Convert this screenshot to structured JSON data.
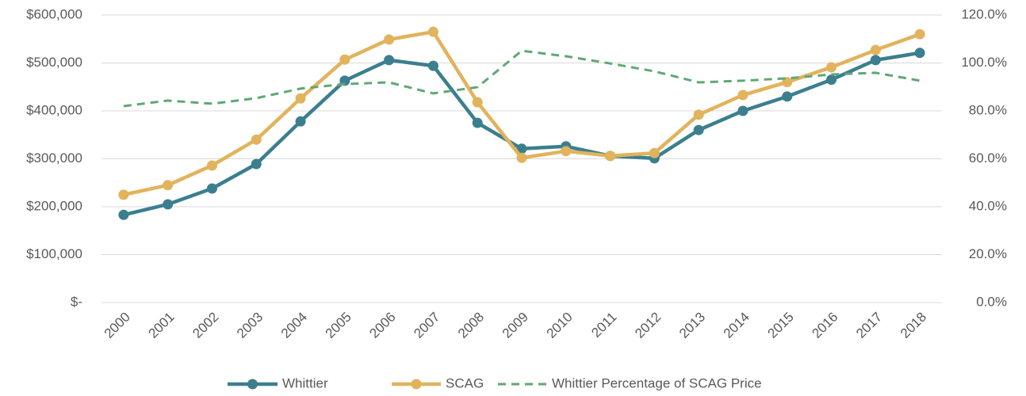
{
  "chart_data": {
    "type": "line",
    "categories": [
      "2000",
      "2001",
      "2002",
      "2003",
      "2004",
      "2005",
      "2006",
      "2007",
      "2008",
      "2009",
      "2010",
      "2011",
      "2012",
      "2013",
      "2014",
      "2015",
      "2016",
      "2017",
      "2018"
    ],
    "series": [
      {
        "name": "Whittier",
        "color": "#3b7f8e",
        "values": [
          183000,
          205000,
          238000,
          289000,
          378000,
          463000,
          506000,
          494000,
          375000,
          321000,
          326000,
          306000,
          301000,
          360000,
          400000,
          430000,
          465000,
          506000,
          521000
        ]
      },
      {
        "name": "SCAG",
        "color": "#e1b35c",
        "values": [
          225000,
          245000,
          286000,
          340000,
          426000,
          507000,
          549000,
          565000,
          418000,
          302000,
          316000,
          306000,
          312000,
          392000,
          433000,
          460000,
          491000,
          527000,
          560000
        ]
      },
      {
        "name": "Whittier Percentage of SCAG Price",
        "color": "#5fa874",
        "axis": "y2",
        "dashed": true,
        "values": [
          82.0,
          84.3,
          83.0,
          85.3,
          89.3,
          91.2,
          91.9,
          87.3,
          89.9,
          105.1,
          102.8,
          99.8,
          96.5,
          91.9,
          92.6,
          93.6,
          95.2,
          95.9,
          92.6
        ]
      }
    ],
    "ylim": [
      0,
      600000
    ],
    "yticks": [
      {
        "value": 0,
        "label": "$-"
      },
      {
        "value": 100000,
        "label": "$100,000"
      },
      {
        "value": 200000,
        "label": "$200,000"
      },
      {
        "value": 300000,
        "label": "$300,000"
      },
      {
        "value": 400000,
        "label": "$400,000"
      },
      {
        "value": 500000,
        "label": "$500,000"
      },
      {
        "value": 600000,
        "label": "$600,000"
      }
    ],
    "y2lim": [
      0,
      120
    ],
    "y2ticks": [
      {
        "value": 0,
        "label": "0.0%"
      },
      {
        "value": 20,
        "label": "20.0%"
      },
      {
        "value": 40,
        "label": "40.0%"
      },
      {
        "value": 60,
        "label": "60.0%"
      },
      {
        "value": 80,
        "label": "80.0%"
      },
      {
        "value": 100,
        "label": "100.0%"
      },
      {
        "value": 120,
        "label": "120.0%"
      }
    ],
    "grid": true,
    "legend": "bottom"
  }
}
